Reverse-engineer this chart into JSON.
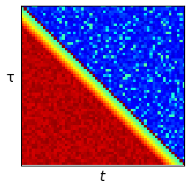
{
  "title": "",
  "xlabel": "t",
  "ylabel": "τ",
  "xlabel_fontsize": 12,
  "ylabel_fontsize": 12,
  "ylabel_rotation": 0,
  "cmap": "jet",
  "n": 60,
  "noise_sigma": 0.05,
  "period": 10,
  "figsize": [
    2.34,
    2.34
  ],
  "dpi": 100
}
